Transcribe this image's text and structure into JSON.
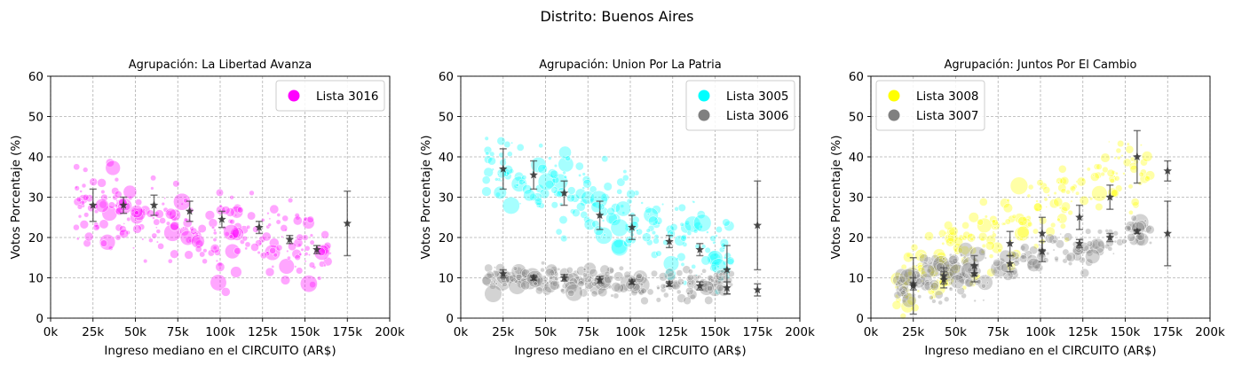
{
  "suptitle": "Distrito: Buenos Aires",
  "colors": {
    "magenta": "#ff00ff",
    "cyan": "#00ffff",
    "yellow": "#ffff00",
    "gray": "#808080",
    "errorbar": "#555555"
  },
  "chart_data": [
    {
      "type": "scatter",
      "title": "Agrupación: La Libertad Avanza",
      "xlabel": "Ingreso mediano en el CIRCUITO (AR$)",
      "ylabel": "Votos Porcentaje (%)",
      "xlim": [
        0,
        200000
      ],
      "ylim": [
        0,
        60
      ],
      "xticks": [
        0,
        25000,
        50000,
        75000,
        100000,
        125000,
        150000,
        175000,
        200000
      ],
      "xtick_labels": [
        "0k",
        "25k",
        "50k",
        "75k",
        "100k",
        "125k",
        "150k",
        "175k",
        "200k"
      ],
      "yticks": [
        0,
        10,
        20,
        30,
        40,
        50,
        60
      ],
      "ytick_labels": [
        "0",
        "10",
        "20",
        "30",
        "40",
        "50",
        "60"
      ],
      "grid": true,
      "legend_loc": "upper right",
      "series": [
        {
          "name": "Lista 3016",
          "color": "#ff00ff",
          "cloud": {
            "x_range": [
              15000,
              165000
            ],
            "y_start": 28,
            "y_end": 17,
            "spread": 4.5,
            "count": 260
          },
          "means": [
            {
              "x": 25000,
              "y": 28,
              "err": 4
            },
            {
              "x": 43000,
              "y": 28,
              "err": 2
            },
            {
              "x": 61000,
              "y": 28,
              "err": 2.5
            },
            {
              "x": 82000,
              "y": 26.5,
              "err": 2.5
            },
            {
              "x": 101000,
              "y": 24.5,
              "err": 2
            },
            {
              "x": 123000,
              "y": 22.5,
              "err": 1.5
            },
            {
              "x": 141000,
              "y": 19.5,
              "err": 1
            },
            {
              "x": 157000,
              "y": 17,
              "err": 1
            },
            {
              "x": 175000,
              "y": 23.5,
              "err": 8
            }
          ]
        }
      ]
    },
    {
      "type": "scatter",
      "title": "Agrupación: Union Por La Patria",
      "xlabel": "Ingreso mediano en el CIRCUITO (AR$)",
      "ylabel": "Votos Porcentaje (%)",
      "xlim": [
        0,
        200000
      ],
      "ylim": [
        0,
        60
      ],
      "xticks": [
        0,
        25000,
        50000,
        75000,
        100000,
        125000,
        150000,
        175000,
        200000
      ],
      "xtick_labels": [
        "0k",
        "25k",
        "50k",
        "75k",
        "100k",
        "125k",
        "150k",
        "175k",
        "200k"
      ],
      "yticks": [
        0,
        10,
        20,
        30,
        40,
        50,
        60
      ],
      "ytick_labels": [
        "0",
        "10",
        "20",
        "30",
        "40",
        "50",
        "60"
      ],
      "grid": true,
      "legend_loc": "upper right",
      "series": [
        {
          "name": "Lista 3005",
          "color": "#00ffff",
          "cloud": {
            "x_range": [
              15000,
              160000
            ],
            "y_start": 39,
            "y_end": 14,
            "spread": 4.5,
            "count": 230
          },
          "means": [
            {
              "x": 25000,
              "y": 37,
              "err": 5
            },
            {
              "x": 43000,
              "y": 35.5,
              "err": 3.5
            },
            {
              "x": 61000,
              "y": 31,
              "err": 3
            },
            {
              "x": 82000,
              "y": 25.5,
              "err": 3.5
            },
            {
              "x": 101000,
              "y": 22.5,
              "err": 3
            },
            {
              "x": 123000,
              "y": 19,
              "err": 1.5
            },
            {
              "x": 141000,
              "y": 17,
              "err": 1.5
            },
            {
              "x": 157000,
              "y": 12,
              "err": 6
            },
            {
              "x": 175000,
              "y": 23,
              "err": 11
            }
          ]
        },
        {
          "name": "Lista 3006",
          "color": "#808080",
          "cloud": {
            "x_range": [
              15000,
              160000
            ],
            "y_start": 10,
            "y_end": 8,
            "spread": 1.8,
            "count": 230
          },
          "means": [
            {
              "x": 25000,
              "y": 11,
              "err": 1
            },
            {
              "x": 43000,
              "y": 10,
              "err": 0.6
            },
            {
              "x": 61000,
              "y": 10,
              "err": 0.8
            },
            {
              "x": 82000,
              "y": 9.5,
              "err": 0.8
            },
            {
              "x": 101000,
              "y": 9,
              "err": 0.6
            },
            {
              "x": 123000,
              "y": 8.5,
              "err": 0.6
            },
            {
              "x": 141000,
              "y": 8,
              "err": 1
            },
            {
              "x": 157000,
              "y": 7.5,
              "err": 1.5
            },
            {
              "x": 175000,
              "y": 7,
              "err": 1.5
            }
          ]
        }
      ]
    },
    {
      "type": "scatter",
      "title": "Agrupación: Juntos Por El Cambio",
      "xlabel": "Ingreso mediano en el CIRCUITO (AR$)",
      "ylabel": "Votos Porcentaje (%)",
      "xlim": [
        0,
        200000
      ],
      "ylim": [
        0,
        60
      ],
      "xticks": [
        0,
        25000,
        50000,
        75000,
        100000,
        125000,
        150000,
        175000,
        200000
      ],
      "xtick_labels": [
        "0k",
        "25k",
        "50k",
        "75k",
        "100k",
        "125k",
        "150k",
        "175k",
        "200k"
      ],
      "yticks": [
        0,
        10,
        20,
        30,
        40,
        50,
        60
      ],
      "ytick_labels": [
        "0",
        "10",
        "20",
        "30",
        "40",
        "50",
        "60"
      ],
      "grid": true,
      "legend_loc": "upper left",
      "series": [
        {
          "name": "Lista 3008",
          "color": "#ffff00",
          "cloud": {
            "x_range": [
              15000,
              165000
            ],
            "y_start": 8,
            "y_end": 40,
            "spread": 4.5,
            "count": 230
          },
          "means": [
            {
              "x": 25000,
              "y": 8.5,
              "err": 1.5
            },
            {
              "x": 43000,
              "y": 10.5,
              "err": 2
            },
            {
              "x": 61000,
              "y": 13,
              "err": 2.5
            },
            {
              "x": 82000,
              "y": 18.5,
              "err": 3
            },
            {
              "x": 101000,
              "y": 21,
              "err": 4
            },
            {
              "x": 123000,
              "y": 25,
              "err": 3
            },
            {
              "x": 141000,
              "y": 30,
              "err": 3
            },
            {
              "x": 157000,
              "y": 40,
              "err": 6.5
            },
            {
              "x": 175000,
              "y": 36.5,
              "err": 2.5
            }
          ]
        },
        {
          "name": "Lista 3007",
          "color": "#808080",
          "cloud": {
            "x_range": [
              15000,
              165000
            ],
            "y_start": 7.5,
            "y_end": 21.5,
            "spread": 2.5,
            "count": 230
          },
          "means": [
            {
              "x": 25000,
              "y": 8,
              "err": 7
            },
            {
              "x": 43000,
              "y": 9.5,
              "err": 2
            },
            {
              "x": 61000,
              "y": 11,
              "err": 2
            },
            {
              "x": 82000,
              "y": 13.5,
              "err": 2
            },
            {
              "x": 101000,
              "y": 16.5,
              "err": 2.5
            },
            {
              "x": 123000,
              "y": 18.5,
              "err": 1
            },
            {
              "x": 141000,
              "y": 20,
              "err": 1
            },
            {
              "x": 157000,
              "y": 21.5,
              "err": 0.5
            },
            {
              "x": 175000,
              "y": 21,
              "err": 8
            }
          ]
        }
      ]
    }
  ]
}
